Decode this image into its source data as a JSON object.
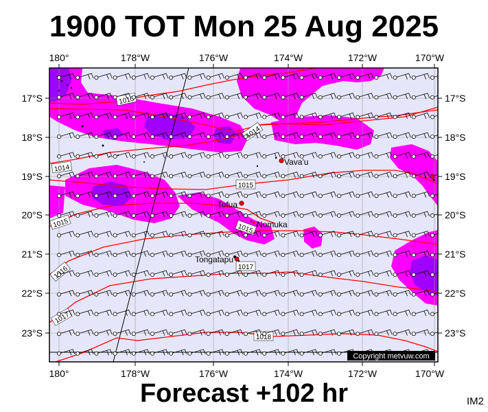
{
  "header": {
    "title": "1900 TOT Mon 25 Aug 2025"
  },
  "footer": {
    "forecast": "Forecast +102 hr",
    "code": "IM2"
  },
  "map": {
    "lon_labels": [
      "180°",
      "178°W",
      "176°W",
      "174°W",
      "172°W",
      "170°W"
    ],
    "lat_labels": [
      "17°S",
      "18°S",
      "19°S",
      "20°S",
      "21°S",
      "22°S",
      "23°S"
    ],
    "places": [
      {
        "name": "Vava'u",
        "lon": -174.0,
        "lat": -18.65
      },
      {
        "name": "Tofua",
        "lon": -175.05,
        "lat": -19.75
      },
      {
        "name": "Nomuka",
        "lon": -174.8,
        "lat": -20.25
      },
      {
        "name": "Tongatapu",
        "lon": -175.2,
        "lat": -21.15
      }
    ],
    "isobars": [
      {
        "label": "1010"
      },
      {
        "label": "1014"
      },
      {
        "label": "1014"
      },
      {
        "label": "1015"
      },
      {
        "label": "1015"
      },
      {
        "label": "1015"
      },
      {
        "label": "1016"
      },
      {
        "label": "1017"
      },
      {
        "label": "1017"
      },
      {
        "label": "1018"
      }
    ],
    "copyright": "Copyright metvuw.com",
    "colors": {
      "sea": "#e6e6fa",
      "rain_light": "#ff00ff",
      "rain_heavy": "#a000ff",
      "isobar": "#ff0000",
      "place": "#ff0000"
    }
  }
}
